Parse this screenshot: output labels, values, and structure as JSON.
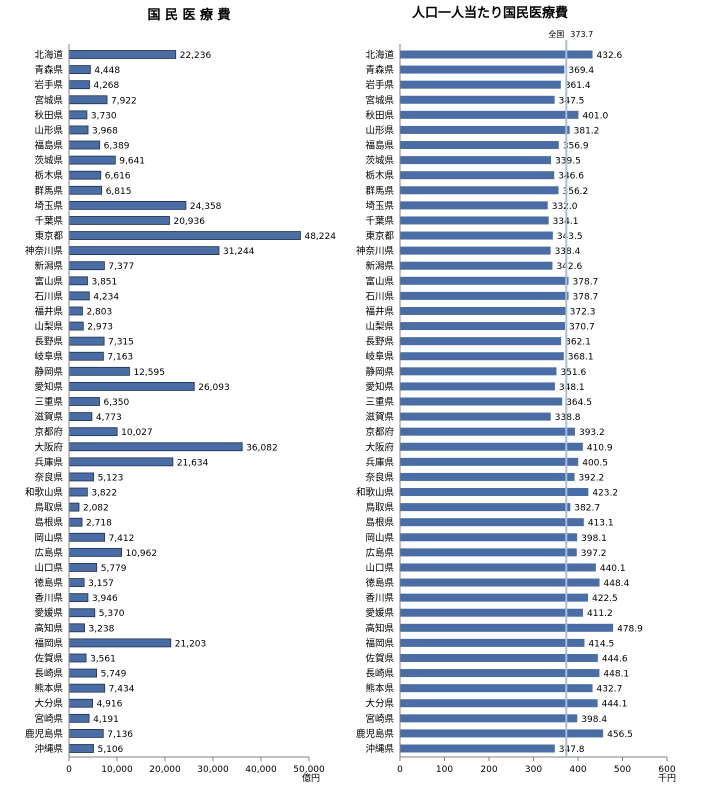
{
  "chart_data": [
    {
      "type": "bar",
      "orientation": "horizontal",
      "title": "国 民 医 療 費",
      "unit_label": "億円",
      "xlim": [
        0,
        50000
      ],
      "xticks": [
        0,
        10000,
        20000,
        30000,
        40000,
        50000
      ],
      "xtick_labels": [
        "0",
        "10,000",
        "20,000",
        "30,000",
        "40,000",
        "50,000"
      ],
      "grid": false,
      "bar_color": "#4a6da5",
      "categories": [
        "北海道",
        "青森県",
        "岩手県",
        "宮城県",
        "秋田県",
        "山形県",
        "福島県",
        "茨城県",
        "栃木県",
        "群馬県",
        "埼玉県",
        "千葉県",
        "東京都",
        "神奈川県",
        "新潟県",
        "富山県",
        "石川県",
        "福井県",
        "山梨県",
        "長野県",
        "岐阜県",
        "静岡県",
        "愛知県",
        "三重県",
        "滋賀県",
        "京都府",
        "大阪府",
        "兵庫県",
        "奈良県",
        "和歌山県",
        "鳥取県",
        "島根県",
        "岡山県",
        "広島県",
        "山口県",
        "徳島県",
        "香川県",
        "愛媛県",
        "高知県",
        "福岡県",
        "佐賀県",
        "長崎県",
        "熊本県",
        "大分県",
        "宮崎県",
        "鹿児島県",
        "沖縄県"
      ],
      "values": [
        22236,
        4448,
        4268,
        7922,
        3730,
        3968,
        6389,
        9641,
        6616,
        6815,
        24358,
        20936,
        48224,
        31244,
        7377,
        3851,
        4234,
        2803,
        2973,
        7315,
        7163,
        12595,
        26093,
        6350,
        4773,
        10027,
        36082,
        21634,
        5123,
        3822,
        2082,
        2718,
        7412,
        10962,
        5779,
        3157,
        3946,
        5370,
        3238,
        21203,
        3561,
        5749,
        7434,
        4916,
        4191,
        7136,
        5106
      ],
      "value_labels": [
        "22,236",
        "4,448",
        "4,268",
        "7,922",
        "3,730",
        "3,968",
        "6,389",
        "9,641",
        "6,616",
        "6,815",
        "24,358",
        "20,936",
        "48,224",
        "31,244",
        "7,377",
        "3,851",
        "4,234",
        "2,803",
        "2,973",
        "7,315",
        "7,163",
        "12,595",
        "26,093",
        "6,350",
        "4,773",
        "10,027",
        "36,082",
        "21,634",
        "5,123",
        "3,822",
        "2,082",
        "2,718",
        "7,412",
        "10,962",
        "5,779",
        "3,157",
        "3,946",
        "5,370",
        "3,238",
        "21,203",
        "3,561",
        "5,749",
        "7,434",
        "4,916",
        "4,191",
        "7,136",
        "5,106"
      ]
    },
    {
      "type": "bar",
      "orientation": "horizontal",
      "title": "人口一人当たり国民医療費",
      "unit_label": "千円",
      "xlim": [
        0,
        600
      ],
      "xticks": [
        0,
        100,
        200,
        300,
        400,
        500,
        600
      ],
      "xtick_labels": [
        "0",
        "100",
        "200",
        "300",
        "400",
        "500",
        "600"
      ],
      "grid": false,
      "bar_color": "#4a6da5",
      "reference_line": {
        "label": "全国",
        "value": 373.7,
        "value_label": "373.7",
        "color": "#a8bedb"
      },
      "categories": [
        "北海道",
        "青森県",
        "岩手県",
        "宮城県",
        "秋田県",
        "山形県",
        "福島県",
        "茨城県",
        "栃木県",
        "群馬県",
        "埼玉県",
        "千葉県",
        "東京都",
        "神奈川県",
        "新潟県",
        "富山県",
        "石川県",
        "福井県",
        "山梨県",
        "長野県",
        "岐阜県",
        "静岡県",
        "愛知県",
        "三重県",
        "滋賀県",
        "京都府",
        "大阪府",
        "兵庫県",
        "奈良県",
        "和歌山県",
        "鳥取県",
        "島根県",
        "岡山県",
        "広島県",
        "山口県",
        "徳島県",
        "香川県",
        "愛媛県",
        "高知県",
        "福岡県",
        "佐賀県",
        "長崎県",
        "熊本県",
        "大分県",
        "宮崎県",
        "鹿児島県",
        "沖縄県"
      ],
      "values": [
        432.6,
        369.4,
        361.4,
        347.5,
        401.0,
        381.2,
        356.9,
        339.5,
        346.6,
        356.2,
        332.0,
        334.1,
        343.5,
        338.4,
        342.6,
        378.7,
        378.7,
        372.3,
        370.7,
        362.1,
        368.1,
        351.6,
        348.1,
        364.5,
        338.8,
        393.2,
        410.9,
        400.5,
        392.2,
        423.2,
        382.7,
        413.1,
        398.1,
        397.2,
        440.1,
        448.4,
        422.5,
        411.2,
        478.9,
        414.5,
        444.6,
        448.1,
        432.7,
        444.1,
        398.4,
        456.5,
        347.8
      ],
      "value_labels": [
        "432.6",
        "369.4",
        "361.4",
        "347.5",
        "401.0",
        "381.2",
        "356.9",
        "339.5",
        "346.6",
        "356.2",
        "332.0",
        "334.1",
        "343.5",
        "338.4",
        "342.6",
        "378.7",
        "378.7",
        "372.3",
        "370.7",
        "362.1",
        "368.1",
        "351.6",
        "348.1",
        "364.5",
        "338.8",
        "393.2",
        "410.9",
        "400.5",
        "392.2",
        "423.2",
        "382.7",
        "413.1",
        "398.1",
        "397.2",
        "440.1",
        "448.4",
        "422.5",
        "411.2",
        "478.9",
        "414.5",
        "444.6",
        "448.1",
        "432.7",
        "444.1",
        "398.4",
        "456.5",
        "347.8"
      ]
    }
  ]
}
